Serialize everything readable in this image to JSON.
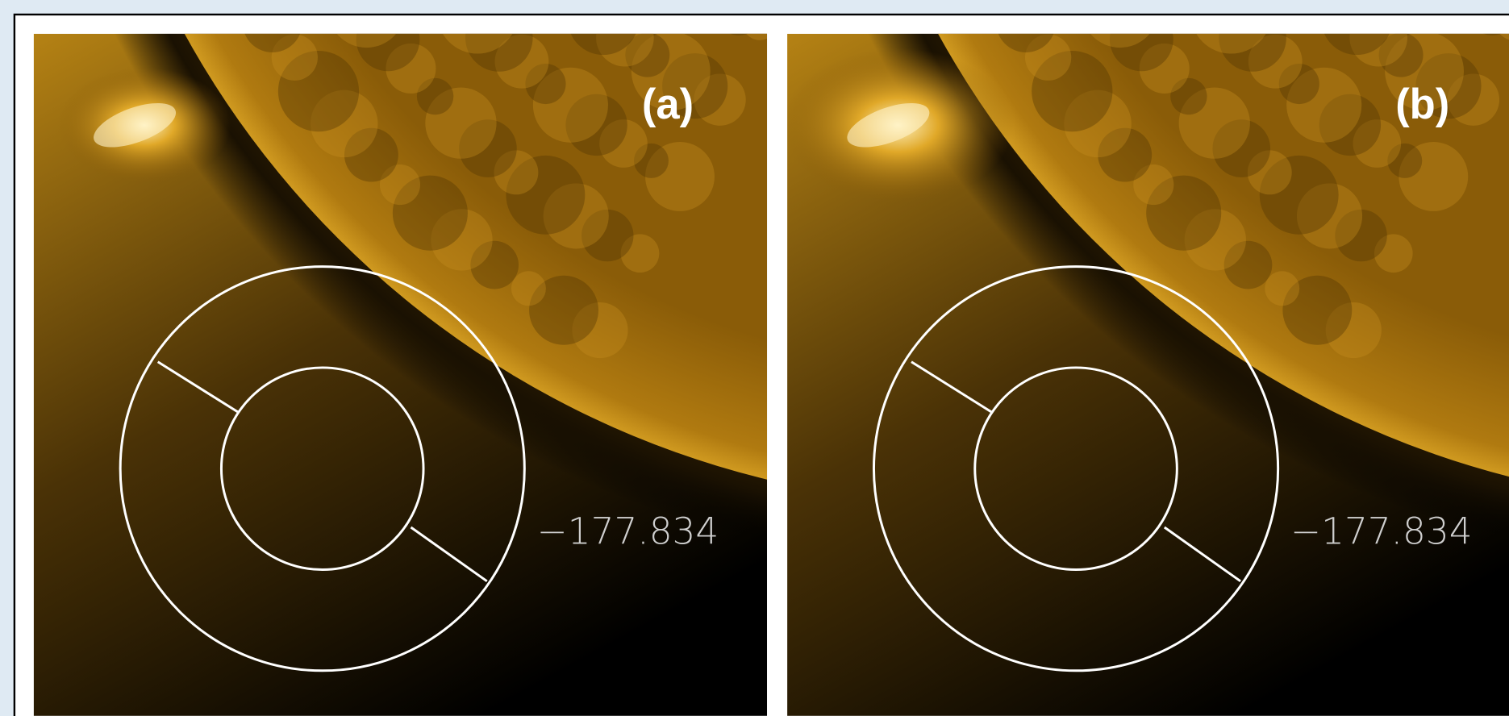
{
  "panels": [
    {
      "label": "(a)",
      "annotation": "−177.834"
    },
    {
      "label": "(b)",
      "annotation": "−177.834"
    }
  ]
}
